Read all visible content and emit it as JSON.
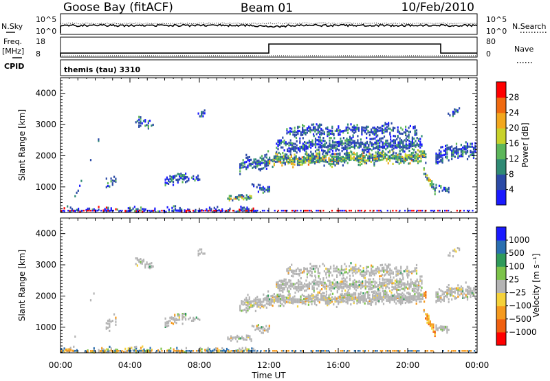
{
  "header": {
    "station": "Goose Bay (fitACF)",
    "beam": "Beam 01",
    "date": "10/Feb/2010"
  },
  "noise_panel": {
    "left_label": "N.Sky",
    "left_ticks": [
      "10^5",
      "10^0"
    ],
    "right_label": "N.Search",
    "right_ticks": [
      "10^5",
      "10^0"
    ]
  },
  "freq_panel": {
    "left_label_line1": "Freq.",
    "left_label_line2": "[MHz]",
    "left_ticks": [
      "18",
      "8"
    ],
    "right_label": "Nave",
    "right_ticks": [
      "80",
      "0"
    ],
    "cpid_label": "CPID",
    "cpid_text": "themis (tau) 3310"
  },
  "x_axis": {
    "label": "Time UT",
    "tick_labels": [
      "00:00",
      "04:00",
      "08:00",
      "12:00",
      "16:00",
      "20:00",
      "00:00"
    ]
  },
  "chart_data": [
    {
      "type": "line",
      "name": "noise",
      "series": [
        {
          "name": "N.Sky",
          "style": "solid"
        },
        {
          "name": "N.Search",
          "style": "dotted"
        }
      ]
    },
    {
      "type": "line",
      "name": "frequency-nave",
      "x_hours": [
        0,
        12,
        12,
        21.9,
        21.9,
        24
      ],
      "freq_mhz": [
        10,
        10,
        15.5,
        15.5,
        10,
        10
      ],
      "nave": [
        0,
        0,
        0,
        0,
        0,
        0
      ]
    },
    {
      "type": "heatmap",
      "name": "power",
      "ylabel": "Slant Range [km]",
      "yticks": [
        1000,
        2000,
        3000,
        4000
      ],
      "ylim": [
        180,
        4500
      ],
      "xlim_hours": [
        0,
        24
      ],
      "colorbar_label": "Power [dB]",
      "colorbar_ticks": [
        "4",
        "8",
        "12",
        "16",
        "20",
        "24",
        "28"
      ],
      "colorbar_colors": [
        "#1a1aff",
        "#2b4aa6",
        "#2f8a74",
        "#5cb65a",
        "#c8d22a",
        "#f2a71e",
        "#f06a10",
        "#ff0000"
      ]
    },
    {
      "type": "heatmap",
      "name": "velocity",
      "ylabel": "Slant Range [km]",
      "yticks": [
        1000,
        2000,
        3000,
        4000
      ],
      "ylim": [
        180,
        4500
      ],
      "xlim_hours": [
        0,
        24
      ],
      "colorbar_label": "Velocity [m s⁻¹]",
      "colorbar_ticks": [
        "1000",
        "500",
        "100",
        "25",
        "−25",
        "−100",
        "−500",
        "−1000"
      ],
      "colorbar_colors": [
        "#1a1aff",
        "#2a6fb0",
        "#2f9a5a",
        "#7cc34a",
        "#b4b4b4",
        "#f5d23a",
        "#f59a1e",
        "#f06010",
        "#ff0000"
      ]
    }
  ]
}
